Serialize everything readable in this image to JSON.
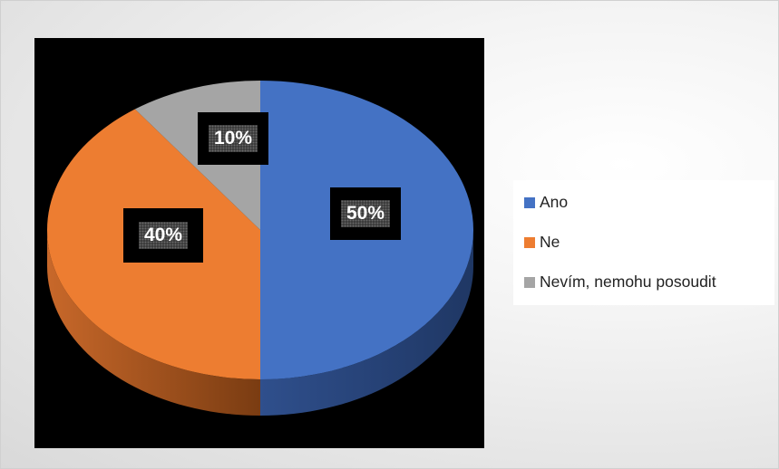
{
  "chart_data": {
    "type": "pie",
    "title": "",
    "three_d": true,
    "legend_position": "right",
    "slices": [
      {
        "label": "Ano",
        "value": 50,
        "display": "50%",
        "color": "#4472C4",
        "side_color": "#2b4a83"
      },
      {
        "label": "Ne",
        "value": 40,
        "display": "40%",
        "color": "#ED7D31",
        "side_color": "#a7561f"
      },
      {
        "label": "Nevím, nemohu posoudit",
        "value": 10,
        "display": "10%",
        "color": "#A5A5A5",
        "side_color": "#6e6e6e"
      }
    ]
  }
}
